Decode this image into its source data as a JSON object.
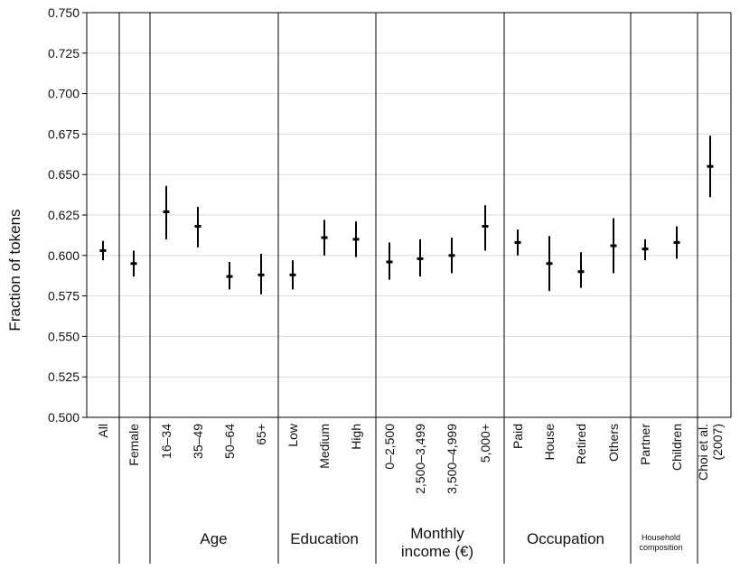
{
  "chart_data": {
    "type": "scatter",
    "ylabel": "Fraction of tokens",
    "ylim": [
      0.5,
      0.75
    ],
    "yticks": [
      "0.500",
      "0.525",
      "0.550",
      "0.575",
      "0.600",
      "0.625",
      "0.650",
      "0.675",
      "0.700",
      "0.725",
      "0.750"
    ],
    "grid": true,
    "categories": [
      "All",
      "Female",
      "16–34",
      "35–49",
      "50–64",
      "65+",
      "Low",
      "Medium",
      "High",
      "0–2,500",
      "2,500–3,499",
      "3,500–4,999",
      "5,000+",
      "Paid",
      "House",
      "Retired",
      "Others",
      "Partner",
      "Children",
      "Choi et al. (2007)"
    ],
    "values": [
      0.603,
      0.595,
      0.627,
      0.618,
      0.587,
      0.588,
      0.588,
      0.611,
      0.61,
      0.596,
      0.598,
      0.6,
      0.618,
      0.608,
      0.595,
      0.59,
      0.606,
      0.604,
      0.608,
      0.655
    ],
    "lower": [
      0.597,
      0.587,
      0.61,
      0.605,
      0.579,
      0.576,
      0.579,
      0.6,
      0.599,
      0.585,
      0.587,
      0.589,
      0.603,
      0.6,
      0.578,
      0.58,
      0.589,
      0.597,
      0.598,
      0.636
    ],
    "upper": [
      0.609,
      0.603,
      0.643,
      0.63,
      0.596,
      0.601,
      0.597,
      0.622,
      0.621,
      0.608,
      0.61,
      0.611,
      0.631,
      0.616,
      0.612,
      0.602,
      0.623,
      0.61,
      0.618,
      0.674
    ],
    "groups": [
      {
        "label": "",
        "start": 0,
        "end": 0
      },
      {
        "label": "",
        "start": 1,
        "end": 1
      },
      {
        "label": "Age",
        "start": 2,
        "end": 5
      },
      {
        "label": "Education",
        "start": 6,
        "end": 8
      },
      {
        "label": "Monthly\nincome (€)",
        "start": 9,
        "end": 12
      },
      {
        "label": "Occupation",
        "start": 13,
        "end": 16
      },
      {
        "label": "Household\ncomposition",
        "start": 17,
        "end": 18
      },
      {
        "label": "",
        "start": 19,
        "end": 19
      }
    ]
  }
}
